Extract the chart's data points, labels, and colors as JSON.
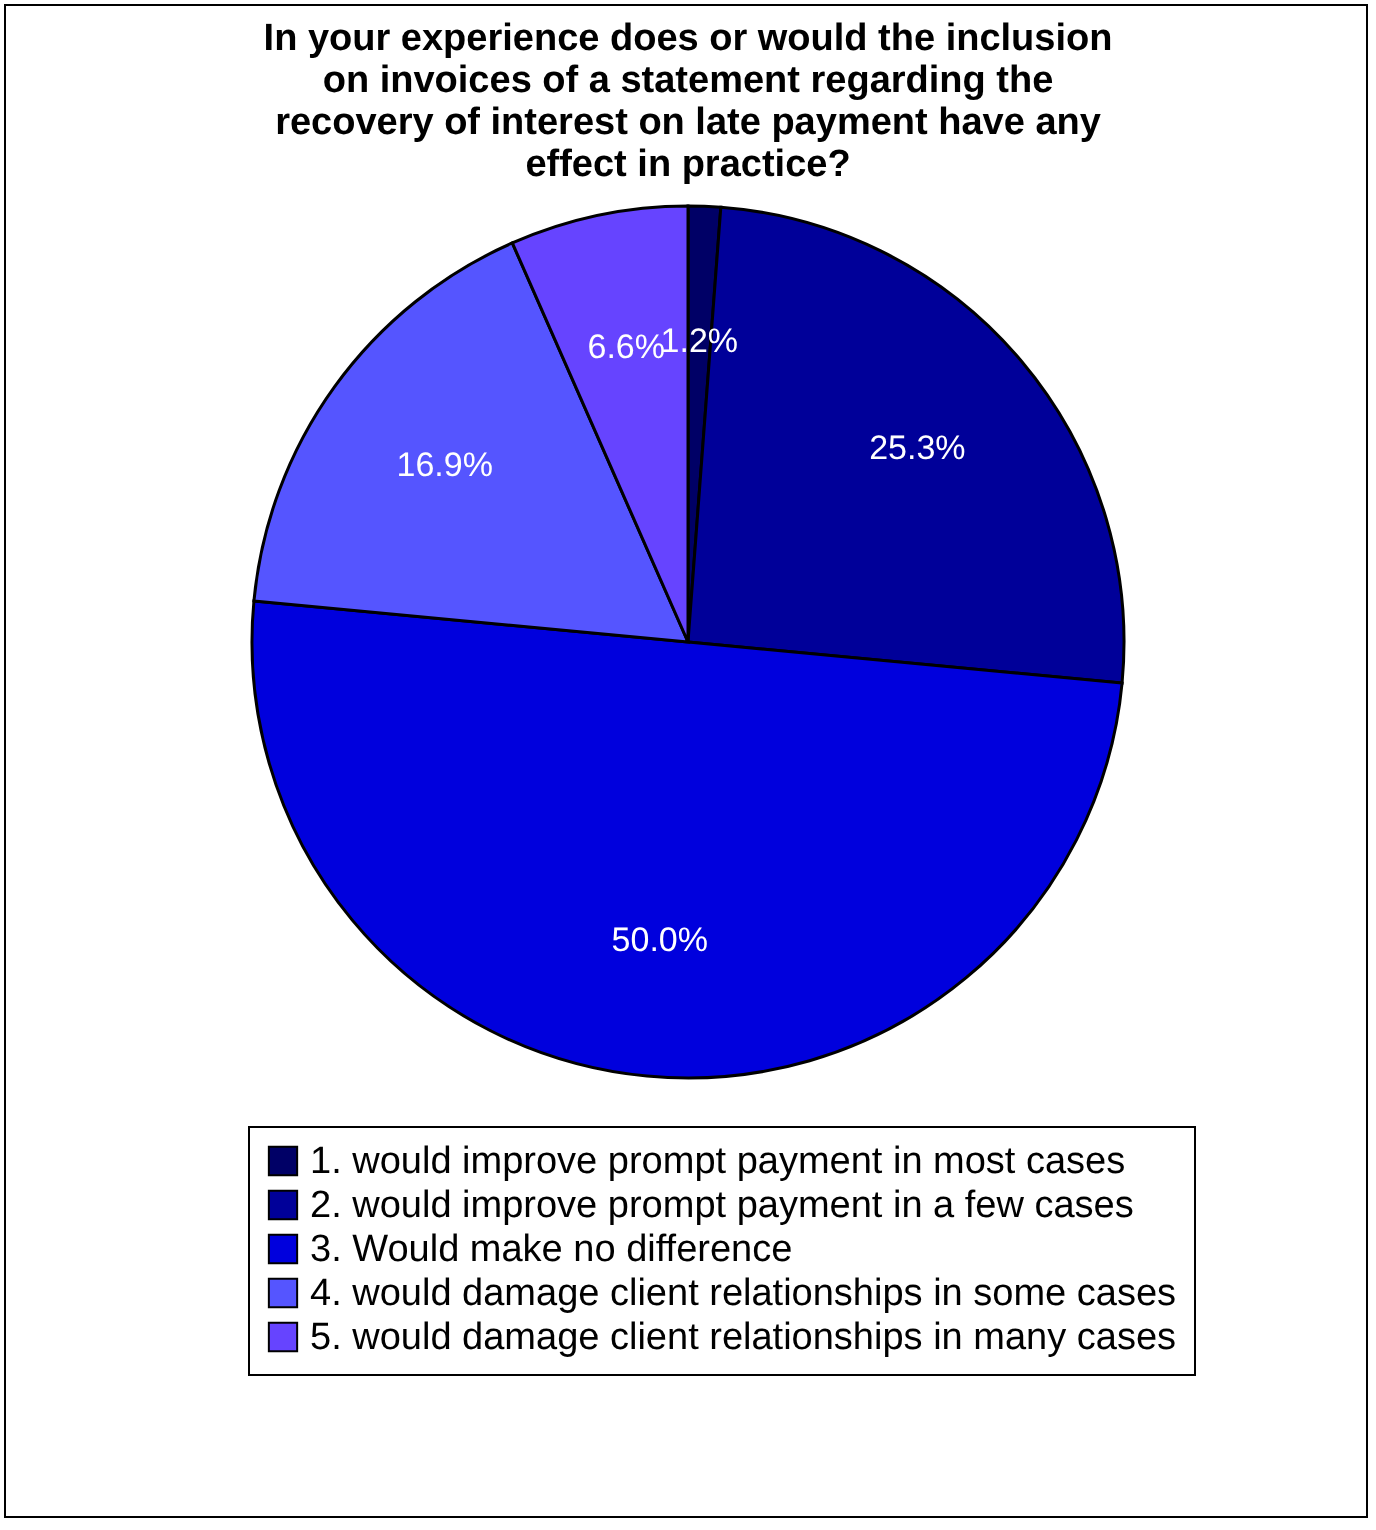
{
  "chart_data": {
    "type": "pie",
    "title": "In your experience does or would the inclusion on invoices of a statement regarding the recovery of interest on late payment have any effect in practice?",
    "categories": [
      "1. would improve prompt payment in most cases",
      "2. would improve prompt payment in a few cases",
      "3. Would make no difference",
      "4. would damage client relationships in some cases",
      "5. would damage client relationships in many cases"
    ],
    "values": [
      1.2,
      25.3,
      50.0,
      16.9,
      6.6
    ],
    "value_labels": [
      "1.2%",
      "25.3%",
      "50.0%",
      "16.9%",
      "6.6%"
    ],
    "colors": [
      "#000066",
      "#000099",
      "#0000dd",
      "#5555ff",
      "#6644ff"
    ],
    "legend": "bottom"
  }
}
